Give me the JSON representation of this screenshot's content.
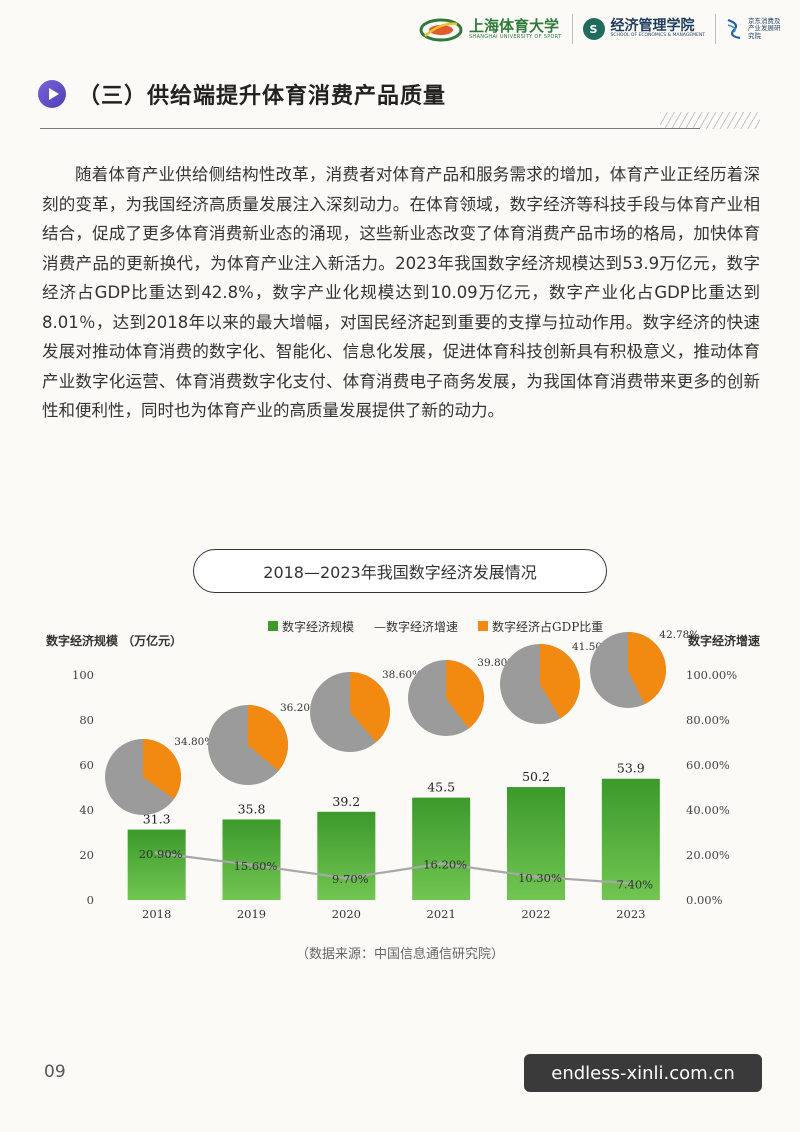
{
  "header": {
    "university_name": "上海体育大学",
    "university_sub": "SHANGHAI UNIVERSITY OF SPORT",
    "school_name": "经济管理学院",
    "school_sub": "SCHOOL OF ECONOMICS & MANAGEMENT",
    "institute_name": "京东消费及产业发展研究院"
  },
  "section": {
    "title": "（三）供给端提升体育消费产品质量"
  },
  "body": {
    "paragraph": "随着体育产业供给侧结构性改革，消费者对体育产品和服务需求的增加，体育产业正经历着深刻的变革，为我国经济高质量发展注入深刻动力。在体育领域，数字经济等科技手段与体育产业相结合，促成了更多体育消费新业态的涌现，这些新业态改变了体育消费产品市场的格局，加快体育消费产品的更新换代，为体育产业注入新活力。2023年我国数字经济规模达到53.9万亿元，数字经济占GDP比重达到42.8%，数字产业化规模达到10.09万亿元，数字产业化占GDP比重达到8.01％，达到2018年以来的最大增幅，对国民经济起到重要的支撑与拉动作用。数字经济的快速发展对推动体育消费的数字化、智能化、信息化发展，促进体育科技创新具有积极意义，推动体育产业数字化运营、体育消费数字化支付、体育消费电子商务发展，为我国体育消费带来更多的创新性和便利性，同时也为体育产业的高质量发展提供了新的动力。"
  },
  "chart_data": {
    "type": "bar",
    "title": "2018—2023年我国数字经济发展情况",
    "categories": [
      "2018",
      "2019",
      "2020",
      "2021",
      "2022",
      "2023"
    ],
    "series": [
      {
        "name": "数字经济规模",
        "kind": "bar",
        "axis": "left",
        "values": [
          31.3,
          35.8,
          39.2,
          45.5,
          50.2,
          53.9
        ],
        "labels": [
          "31.3",
          "35.8",
          "39.2",
          "45.5",
          "50.2",
          "53.9"
        ]
      },
      {
        "name": "数字经济增速",
        "kind": "line",
        "axis": "right",
        "values": [
          20.9,
          15.6,
          9.7,
          16.2,
          10.3,
          7.4
        ],
        "labels": [
          "20.90%",
          "15.60%",
          "9.70%",
          "16.20%",
          "10.30%",
          "7.40%"
        ]
      },
      {
        "name": "数字经济占GDP比重",
        "kind": "pie",
        "values": [
          34.8,
          36.2,
          38.6,
          39.8,
          41.5,
          42.78
        ],
        "labels": [
          "34.80%",
          "36.20%",
          "38.60%",
          "39.80%",
          "41.50%",
          "42.78%"
        ]
      }
    ],
    "legend": [
      "数字经济规模",
      "数字经济增速",
      "数字经济占GDP比重"
    ],
    "legend_prefix_line": "—",
    "ylabel": "数字经济规模 （万亿元）",
    "y2label": "数字经济增速",
    "ylim": [
      0,
      100
    ],
    "y2lim": [
      0,
      100
    ],
    "yticks": [
      "0",
      "20",
      "40",
      "60",
      "80",
      "100"
    ],
    "y2ticks": [
      "0.00%",
      "20.00%",
      "40.00%",
      "60.00%",
      "80.00%",
      "100.00%"
    ],
    "legend_position": "top-center",
    "colors": {
      "bar": "#3f9a2c",
      "bar_light": "#6fc24e",
      "line": "#a8a8a8",
      "pie_share": "#f28a12",
      "pie_rest": "#9b9b9b"
    }
  },
  "source": "（数据来源：中国信息通信研究院）",
  "page_number": "09",
  "watermark": "endless-xinli.com.cn"
}
